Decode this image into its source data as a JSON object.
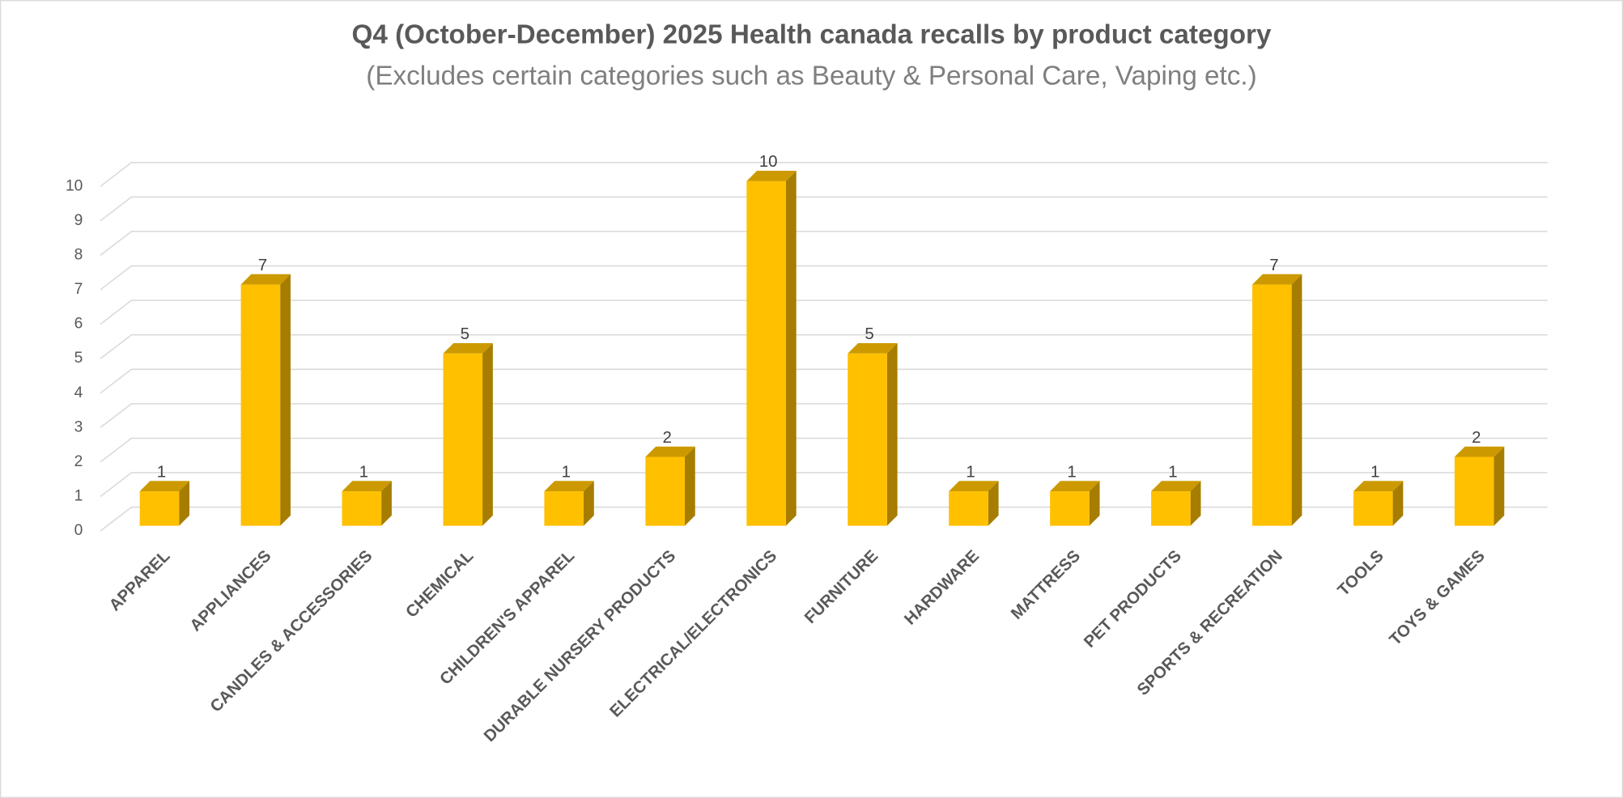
{
  "chart_data": {
    "type": "bar3d",
    "title": "Q4 (October-December) 2025 Health canada recalls by product category",
    "subtitle": "(Excludes certain categories such as Beauty & Personal Care, Vaping etc.)",
    "categories": [
      "APPAREL",
      "APPLIANCES",
      "CANDLES & ACCESSORIES",
      "CHEMICAL",
      "CHILDREN'S APPAREL",
      "DURABLE NURSERY PRODUCTS",
      "ELECTRICAL/ELECTRONICS",
      "FURNITURE",
      "HARDWARE",
      "MATTRESS",
      "PET PRODUCTS",
      "SPORTS & RECREATION",
      "TOOLS",
      "TOYS & GAMES"
    ],
    "values": [
      1,
      7,
      1,
      5,
      1,
      2,
      10,
      5,
      1,
      1,
      1,
      7,
      1,
      2
    ],
    "color": "#ffc000",
    "ylim": [
      0,
      10
    ],
    "yticks": [
      0,
      1,
      2,
      3,
      4,
      5,
      6,
      7,
      8,
      9,
      10
    ],
    "grid": true
  }
}
